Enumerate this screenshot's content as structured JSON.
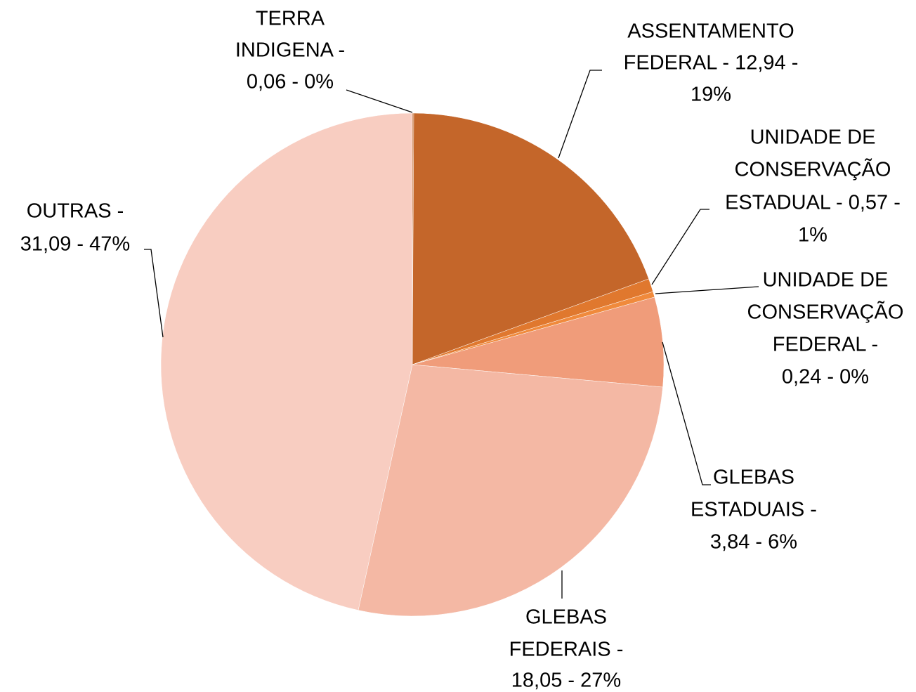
{
  "chart_data": {
    "type": "pie",
    "labels": [
      [
        "TERRA",
        "INDIGENA -",
        "0,06 -  0%"
      ],
      [
        "ASSENTAMENTO",
        "FEDERAL -  12,94 -",
        "19%"
      ],
      [
        "UNIDADE DE",
        "CONSERVAÇÃO",
        "ESTADUAL -  0,57 -",
        "1%"
      ],
      [
        "UNIDADE DE",
        "CONSERVAÇÃO",
        "FEDERAL -",
        "0,24 -  0%"
      ],
      [
        "GLEBAS",
        "ESTADUAIS -",
        "3,84 -  6%"
      ],
      [
        "GLEBAS",
        "FEDERAIS -",
        "18,05 -  27%"
      ],
      [
        "OUTRAS  -",
        "31,09 -  47%"
      ]
    ],
    "values": [
      0.06,
      12.94,
      0.57,
      0.24,
      3.84,
      18.05,
      31.09
    ],
    "colors": [
      "#c0652a",
      "#c4662a",
      "#e0782e",
      "#f08a3c",
      "#f09c7a",
      "#f4b8a4",
      "#f8cdc1"
    ]
  }
}
